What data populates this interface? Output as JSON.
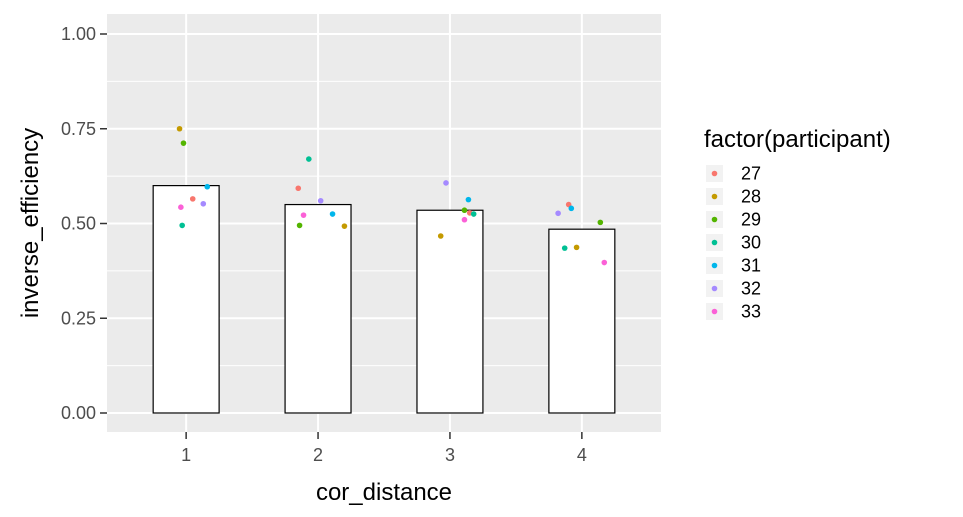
{
  "chart_data": {
    "type": "bar",
    "xlabel": "cor_distance",
    "ylabel": "inverse_efficiency",
    "categories": [
      "1",
      "2",
      "3",
      "4"
    ],
    "x_numeric": [
      1,
      2,
      3,
      4
    ],
    "bar_values": [
      0.6,
      0.55,
      0.535,
      0.485
    ],
    "ylim": [
      0,
      1.0
    ],
    "xlim": [
      0.4,
      4.6
    ],
    "y_ticks": [
      0,
      0.25,
      0.5,
      0.75,
      1.0
    ],
    "y_tick_labels": [
      "0.00",
      "0.25",
      "0.50",
      "0.75",
      "1.00"
    ],
    "grid": true,
    "legend_title": "factor(participant)",
    "legend_position": "right",
    "series": [
      {
        "name": "27",
        "color": "#F8766D",
        "points": [
          {
            "x": 1.05,
            "y": 0.565
          },
          {
            "x": 1.85,
            "y": 0.593
          },
          {
            "x": 3.15,
            "y": 0.528
          },
          {
            "x": 3.9,
            "y": 0.55
          }
        ]
      },
      {
        "name": "28",
        "color": "#C49A00",
        "points": [
          {
            "x": 0.95,
            "y": 0.75
          },
          {
            "x": 2.2,
            "y": 0.493
          },
          {
            "x": 2.93,
            "y": 0.467
          },
          {
            "x": 3.96,
            "y": 0.437
          }
        ]
      },
      {
        "name": "29",
        "color": "#53B400",
        "points": [
          {
            "x": 0.98,
            "y": 0.712
          },
          {
            "x": 1.86,
            "y": 0.495
          },
          {
            "x": 3.11,
            "y": 0.535
          },
          {
            "x": 4.14,
            "y": 0.503
          }
        ]
      },
      {
        "name": "30",
        "color": "#00C094",
        "points": [
          {
            "x": 0.97,
            "y": 0.495
          },
          {
            "x": 1.93,
            "y": 0.67
          },
          {
            "x": 3.18,
            "y": 0.525
          },
          {
            "x": 3.87,
            "y": 0.435
          }
        ]
      },
      {
        "name": "31",
        "color": "#00B6EB",
        "points": [
          {
            "x": 1.16,
            "y": 0.597
          },
          {
            "x": 2.11,
            "y": 0.525
          },
          {
            "x": 3.14,
            "y": 0.563
          },
          {
            "x": 3.92,
            "y": 0.54
          }
        ]
      },
      {
        "name": "32",
        "color": "#A58AFF",
        "points": [
          {
            "x": 1.13,
            "y": 0.552
          },
          {
            "x": 2.02,
            "y": 0.56
          },
          {
            "x": 2.97,
            "y": 0.607
          },
          {
            "x": 3.82,
            "y": 0.527
          }
        ]
      },
      {
        "name": "33",
        "color": "#FB61D7",
        "points": [
          {
            "x": 0.96,
            "y": 0.543
          },
          {
            "x": 1.89,
            "y": 0.522
          },
          {
            "x": 3.11,
            "y": 0.51
          },
          {
            "x": 4.17,
            "y": 0.397
          }
        ]
      }
    ]
  }
}
